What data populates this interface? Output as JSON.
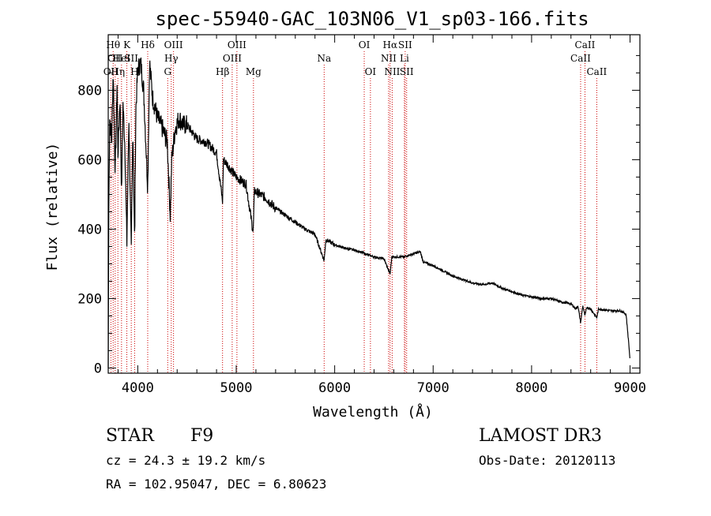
{
  "chart_data": {
    "type": "line",
    "title": "spec-55940-GAC_103N06_V1_sp03-166.fits",
    "xlabel": "Wavelength (Å)",
    "ylabel": "Flux (relative)",
    "xlim": [
      3700,
      9100
    ],
    "ylim": [
      -15,
      960
    ],
    "x_ticks": [
      4000,
      5000,
      6000,
      7000,
      8000,
      9000
    ],
    "y_ticks": [
      0,
      200,
      400,
      600,
      800
    ],
    "grid": false,
    "spectrum_anchors": [
      {
        "x": 3700,
        "y": 0
      },
      {
        "x": 3705,
        "y": 420
      },
      {
        "x": 3715,
        "y": 730
      },
      {
        "x": 3735,
        "y": 650
      },
      {
        "x": 3750,
        "y": 860
      },
      {
        "x": 3771,
        "y": 560
      },
      {
        "x": 3790,
        "y": 820
      },
      {
        "x": 3798,
        "y": 610
      },
      {
        "x": 3820,
        "y": 780
      },
      {
        "x": 3835,
        "y": 500
      },
      {
        "x": 3850,
        "y": 760
      },
      {
        "x": 3870,
        "y": 640
      },
      {
        "x": 3889,
        "y": 360
      },
      {
        "x": 3910,
        "y": 720
      },
      {
        "x": 3934,
        "y": 330
      },
      {
        "x": 3950,
        "y": 700
      },
      {
        "x": 3968,
        "y": 360
      },
      {
        "x": 3980,
        "y": 740
      },
      {
        "x": 4000,
        "y": 860
      },
      {
        "x": 4030,
        "y": 880
      },
      {
        "x": 4060,
        "y": 800
      },
      {
        "x": 4101,
        "y": 520
      },
      {
        "x": 4120,
        "y": 880
      },
      {
        "x": 4150,
        "y": 780
      },
      {
        "x": 4200,
        "y": 720
      },
      {
        "x": 4250,
        "y": 690
      },
      {
        "x": 4300,
        "y": 650
      },
      {
        "x": 4330,
        "y": 440
      },
      {
        "x": 4345,
        "y": 600
      },
      {
        "x": 4380,
        "y": 690
      },
      {
        "x": 4420,
        "y": 720
      },
      {
        "x": 4460,
        "y": 700
      },
      {
        "x": 4500,
        "y": 700
      },
      {
        "x": 4600,
        "y": 660
      },
      {
        "x": 4700,
        "y": 650
      },
      {
        "x": 4800,
        "y": 620
      },
      {
        "x": 4861,
        "y": 480
      },
      {
        "x": 4870,
        "y": 600
      },
      {
        "x": 4900,
        "y": 590
      },
      {
        "x": 5000,
        "y": 550
      },
      {
        "x": 5100,
        "y": 530
      },
      {
        "x": 5172,
        "y": 390
      },
      {
        "x": 5185,
        "y": 510
      },
      {
        "x": 5300,
        "y": 490
      },
      {
        "x": 5400,
        "y": 460
      },
      {
        "x": 5500,
        "y": 440
      },
      {
        "x": 5600,
        "y": 420
      },
      {
        "x": 5700,
        "y": 400
      },
      {
        "x": 5800,
        "y": 385
      },
      {
        "x": 5893,
        "y": 310
      },
      {
        "x": 5910,
        "y": 370
      },
      {
        "x": 6000,
        "y": 355
      },
      {
        "x": 6100,
        "y": 345
      },
      {
        "x": 6200,
        "y": 340
      },
      {
        "x": 6300,
        "y": 330
      },
      {
        "x": 6400,
        "y": 320
      },
      {
        "x": 6500,
        "y": 315
      },
      {
        "x": 6563,
        "y": 270
      },
      {
        "x": 6580,
        "y": 320
      },
      {
        "x": 6700,
        "y": 320
      },
      {
        "x": 6870,
        "y": 335
      },
      {
        "x": 6900,
        "y": 305
      },
      {
        "x": 7000,
        "y": 295
      },
      {
        "x": 7100,
        "y": 280
      },
      {
        "x": 7200,
        "y": 265
      },
      {
        "x": 7300,
        "y": 255
      },
      {
        "x": 7400,
        "y": 245
      },
      {
        "x": 7500,
        "y": 240
      },
      {
        "x": 7600,
        "y": 245
      },
      {
        "x": 7700,
        "y": 230
      },
      {
        "x": 7800,
        "y": 220
      },
      {
        "x": 7900,
        "y": 210
      },
      {
        "x": 8000,
        "y": 205
      },
      {
        "x": 8100,
        "y": 200
      },
      {
        "x": 8200,
        "y": 200
      },
      {
        "x": 8300,
        "y": 190
      },
      {
        "x": 8400,
        "y": 185
      },
      {
        "x": 8450,
        "y": 170
      },
      {
        "x": 8470,
        "y": 180
      },
      {
        "x": 8498,
        "y": 130
      },
      {
        "x": 8520,
        "y": 180
      },
      {
        "x": 8542,
        "y": 150
      },
      {
        "x": 8560,
        "y": 175
      },
      {
        "x": 8600,
        "y": 170
      },
      {
        "x": 8662,
        "y": 145
      },
      {
        "x": 8680,
        "y": 170
      },
      {
        "x": 8800,
        "y": 165
      },
      {
        "x": 8900,
        "y": 165
      },
      {
        "x": 8960,
        "y": 155
      },
      {
        "x": 8990,
        "y": 60
      },
      {
        "x": 9000,
        "y": 20
      }
    ],
    "lines": [
      {
        "x": 3727,
        "label": "OII",
        "row": 3
      },
      {
        "x": 3750,
        "label": "Hθ",
        "row": 1
      },
      {
        "x": 3771,
        "label": "OII",
        "row": 2
      },
      {
        "x": 3798,
        "label": "Hη",
        "row": 3
      },
      {
        "x": 3835,
        "label": "HeI",
        "row": 2
      },
      {
        "x": 3889,
        "label": "K",
        "row": 1
      },
      {
        "x": 3934,
        "label": "SII",
        "row": 2
      },
      {
        "x": 3968,
        "label": "H",
        "row": 3
      },
      {
        "x": 4101,
        "label": "Hδ",
        "row": 1
      },
      {
        "x": 4304,
        "label": "G",
        "row": 3
      },
      {
        "x": 4340,
        "label": "Hγ",
        "row": 2
      },
      {
        "x": 4363,
        "label": "OIII",
        "row": 1
      },
      {
        "x": 4861,
        "label": "Hβ",
        "row": 3
      },
      {
        "x": 4959,
        "label": "OIII",
        "row": 2
      },
      {
        "x": 5007,
        "label": "OIII",
        "row": 1
      },
      {
        "x": 5175,
        "label": "Mg",
        "row": 3
      },
      {
        "x": 5893,
        "label": "Na",
        "row": 2
      },
      {
        "x": 6300,
        "label": "OI",
        "row": 1
      },
      {
        "x": 6363,
        "label": "OI",
        "row": 3
      },
      {
        "x": 6548,
        "label": "NII",
        "row": 2
      },
      {
        "x": 6563,
        "label": "Hα",
        "row": 1
      },
      {
        "x": 6584,
        "label": "NII",
        "row": 3
      },
      {
        "x": 6708,
        "label": "Li",
        "row": 2
      },
      {
        "x": 6716,
        "label": "SII",
        "row": 1
      },
      {
        "x": 6731,
        "label": "SII",
        "row": 3
      },
      {
        "x": 8498,
        "label": "CaII",
        "row": 2
      },
      {
        "x": 8542,
        "label": "CaII",
        "row": 1
      },
      {
        "x": 8662,
        "label": "CaII",
        "row": 3
      }
    ]
  },
  "info": {
    "class_label": "STAR",
    "subclass_label": "F9",
    "redshift_text": "cz = 24.3 ± 19.2 km/s",
    "coords_text": "RA = 102.95047, DEC =   6.80623",
    "survey_text": "LAMOST DR3",
    "obs_date_text": "Obs-Date: 20120113"
  },
  "colors": {
    "line_marker": "#cc0000",
    "spectrum": "#000000",
    "axis": "#000000"
  }
}
